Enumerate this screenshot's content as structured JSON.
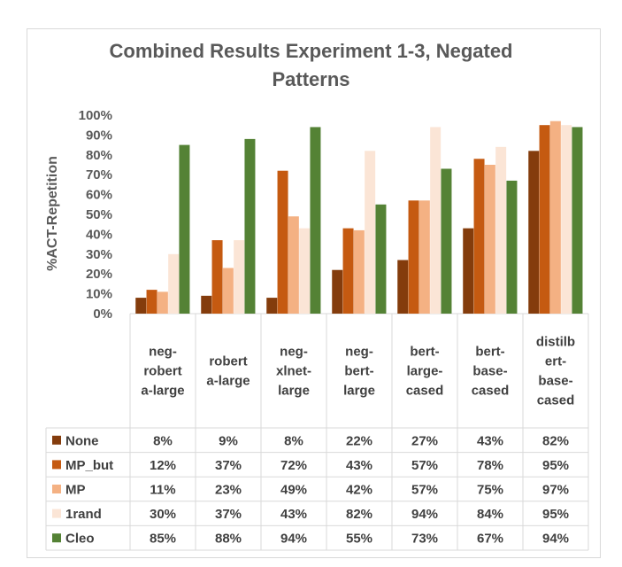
{
  "chart_data": {
    "type": "bar",
    "title_lines": [
      "Combined Results Experiment 1-3, Negated",
      "Patterns"
    ],
    "ylabel": "%ACT-Repetition",
    "xlabel": "",
    "ylim": [
      0,
      100
    ],
    "yticks": [
      "0%",
      "10%",
      "20%",
      "30%",
      "40%",
      "50%",
      "60%",
      "70%",
      "80%",
      "90%",
      "100%"
    ],
    "categories": [
      [
        "neg-",
        "robert",
        "a-large"
      ],
      [
        "robert",
        "a-large"
      ],
      [
        "neg-",
        "xlnet-",
        "large"
      ],
      [
        "neg-",
        "bert-",
        "large"
      ],
      [
        "bert-",
        "large-",
        "cased"
      ],
      [
        "bert-",
        "base-",
        "cased"
      ],
      [
        "distilb",
        "ert-",
        "base-",
        "cased"
      ]
    ],
    "series": [
      {
        "name": "None",
        "color": "#843c0c",
        "values": [
          8,
          9,
          8,
          22,
          27,
          43,
          82
        ]
      },
      {
        "name": "MP_but",
        "color": "#c55a11",
        "values": [
          12,
          37,
          72,
          43,
          57,
          78,
          95
        ]
      },
      {
        "name": "MP",
        "color": "#f4b183",
        "values": [
          11,
          23,
          49,
          42,
          57,
          75,
          97
        ]
      },
      {
        "name": "1rand",
        "color": "#fbe5d6",
        "values": [
          30,
          37,
          43,
          82,
          94,
          84,
          95
        ]
      },
      {
        "name": "Cleo",
        "color": "#548235",
        "values": [
          85,
          88,
          94,
          55,
          73,
          67,
          94
        ]
      }
    ],
    "value_format": "%",
    "grid": false,
    "legend": "data-table"
  }
}
